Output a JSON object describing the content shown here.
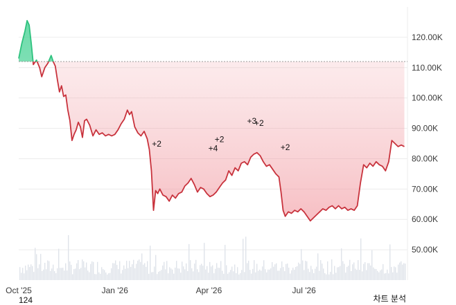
{
  "footer": {
    "low_label": "124",
    "analysis_label": "차트 분석"
  },
  "colors": {
    "up_line": "#2ec27e",
    "down_line": "#c8323c",
    "up_fill": "#3ccf8e",
    "down_fill": "#f4a0a6",
    "baseline": "#9a9a9a",
    "grid": "#ececec",
    "volume": "#dfe3ea"
  },
  "chart_data": {
    "type": "area",
    "y_tick_labels": [
      "120.00K",
      "110.00K",
      "100.00K",
      "90.00K",
      "80.00K",
      "70.00K",
      "60.00K",
      "50.00K"
    ],
    "y_ticks": [
      120000,
      110000,
      100000,
      90000,
      80000,
      70000,
      60000,
      50000
    ],
    "x_tick_labels": [
      "Oct '25",
      "Jan '26",
      "Apr '26",
      "Jul '26"
    ],
    "x_ticks": [
      "2025-10-01",
      "2026-01-01",
      "2026-04-01",
      "2026-07-01"
    ],
    "ylim": [
      40000,
      130000
    ],
    "xlim": [
      "2025-10-01",
      "2026-10-08"
    ],
    "baseline": 112000,
    "grid": true,
    "series": [
      {
        "points": [
          [
            "2025-10-01",
            113000
          ],
          [
            "2025-10-04",
            118000
          ],
          [
            "2025-10-07",
            122000
          ],
          [
            "2025-10-09",
            125500
          ],
          [
            "2025-10-11",
            124000
          ],
          [
            "2025-10-13",
            118000
          ],
          [
            "2025-10-15",
            111000
          ],
          [
            "2025-10-18",
            112500
          ],
          [
            "2025-10-21",
            110000
          ],
          [
            "2025-10-23",
            107000
          ],
          [
            "2025-10-26",
            110000
          ],
          [
            "2025-10-29",
            111500
          ],
          [
            "2025-11-01",
            114000
          ],
          [
            "2025-11-03",
            112000
          ],
          [
            "2025-11-05",
            110500
          ],
          [
            "2025-11-07",
            106000
          ],
          [
            "2025-11-09",
            102000
          ],
          [
            "2025-11-11",
            104000
          ],
          [
            "2025-11-13",
            100500
          ],
          [
            "2025-11-15",
            101000
          ],
          [
            "2025-11-17",
            96000
          ],
          [
            "2025-11-19",
            92500
          ],
          [
            "2025-11-21",
            86000
          ],
          [
            "2025-11-23",
            88000
          ],
          [
            "2025-11-25",
            89500
          ],
          [
            "2025-11-27",
            92000
          ],
          [
            "2025-11-29",
            90500
          ],
          [
            "2025-12-01",
            87000
          ],
          [
            "2025-12-03",
            92500
          ],
          [
            "2025-12-05",
            93000
          ],
          [
            "2025-12-08",
            91000
          ],
          [
            "2025-12-11",
            87500
          ],
          [
            "2025-12-14",
            89500
          ],
          [
            "2025-12-17",
            88000
          ],
          [
            "2025-12-20",
            88500
          ],
          [
            "2025-12-23",
            87500
          ],
          [
            "2025-12-26",
            88000
          ],
          [
            "2025-12-29",
            87500
          ],
          [
            "2026-01-01",
            88000
          ],
          [
            "2026-01-04",
            89500
          ],
          [
            "2026-01-07",
            91500
          ],
          [
            "2026-01-10",
            93000
          ],
          [
            "2026-01-13",
            96000
          ],
          [
            "2026-01-15",
            94500
          ],
          [
            "2026-01-17",
            95500
          ],
          [
            "2026-01-20",
            90500
          ],
          [
            "2026-01-23",
            88500
          ],
          [
            "2026-01-26",
            87500
          ],
          [
            "2026-01-29",
            89000
          ],
          [
            "2026-02-01",
            86500
          ],
          [
            "2026-02-03",
            83000
          ],
          [
            "2026-02-05",
            76000
          ],
          [
            "2026-02-07",
            63000
          ],
          [
            "2026-02-09",
            69500
          ],
          [
            "2026-02-11",
            68500
          ],
          [
            "2026-02-13",
            70000
          ],
          [
            "2026-02-16",
            68000
          ],
          [
            "2026-02-19",
            67500
          ],
          [
            "2026-02-22",
            66000
          ],
          [
            "2026-02-25",
            68000
          ],
          [
            "2026-02-28",
            67000
          ],
          [
            "2026-03-03",
            68500
          ],
          [
            "2026-03-06",
            69000
          ],
          [
            "2026-03-09",
            71000
          ],
          [
            "2026-03-12",
            72000
          ],
          [
            "2026-03-15",
            73500
          ],
          [
            "2026-03-18",
            71500
          ],
          [
            "2026-03-21",
            69000
          ],
          [
            "2026-03-24",
            70500
          ],
          [
            "2026-03-27",
            70000
          ],
          [
            "2026-03-30",
            68500
          ],
          [
            "2026-04-02",
            67500
          ],
          [
            "2026-04-05",
            68000
          ],
          [
            "2026-04-08",
            69000
          ],
          [
            "2026-04-11",
            70500
          ],
          [
            "2026-04-14",
            72000
          ],
          [
            "2026-04-17",
            73000
          ],
          [
            "2026-04-20",
            76000
          ],
          [
            "2026-04-23",
            74500
          ],
          [
            "2026-04-26",
            77000
          ],
          [
            "2026-04-29",
            76000
          ],
          [
            "2026-05-02",
            78500
          ],
          [
            "2026-05-05",
            79000
          ],
          [
            "2026-05-08",
            78000
          ],
          [
            "2026-05-11",
            80500
          ],
          [
            "2026-05-14",
            81500
          ],
          [
            "2026-05-17",
            82000
          ],
          [
            "2026-05-20",
            81000
          ],
          [
            "2026-05-23",
            79000
          ],
          [
            "2026-05-26",
            77500
          ],
          [
            "2026-05-29",
            78000
          ],
          [
            "2026-06-01",
            76500
          ],
          [
            "2026-06-04",
            75000
          ],
          [
            "2026-06-07",
            74000
          ],
          [
            "2026-06-09",
            69000
          ],
          [
            "2026-06-11",
            63000
          ],
          [
            "2026-06-13",
            61000
          ],
          [
            "2026-06-16",
            62500
          ],
          [
            "2026-06-19",
            62000
          ],
          [
            "2026-06-22",
            63000
          ],
          [
            "2026-06-25",
            62500
          ],
          [
            "2026-06-28",
            63500
          ],
          [
            "2026-07-01",
            62500
          ],
          [
            "2026-07-04",
            61000
          ],
          [
            "2026-07-07",
            59500
          ],
          [
            "2026-07-10",
            60500
          ],
          [
            "2026-07-13",
            61500
          ],
          [
            "2026-07-16",
            62500
          ],
          [
            "2026-07-19",
            63500
          ],
          [
            "2026-07-22",
            63000
          ],
          [
            "2026-07-25",
            64000
          ],
          [
            "2026-07-28",
            64500
          ],
          [
            "2026-07-31",
            63500
          ],
          [
            "2026-08-03",
            64500
          ],
          [
            "2026-08-06",
            63500
          ],
          [
            "2026-08-09",
            64000
          ],
          [
            "2026-08-12",
            63000
          ],
          [
            "2026-08-15",
            63500
          ],
          [
            "2026-08-18",
            63000
          ],
          [
            "2026-08-21",
            64500
          ],
          [
            "2026-08-24",
            72000
          ],
          [
            "2026-08-27",
            78000
          ],
          [
            "2026-08-30",
            77000
          ],
          [
            "2026-09-02",
            78500
          ],
          [
            "2026-09-05",
            77500
          ],
          [
            "2026-09-08",
            79000
          ],
          [
            "2026-09-11",
            78000
          ],
          [
            "2026-09-14",
            77500
          ],
          [
            "2026-09-17",
            76000
          ],
          [
            "2026-09-20",
            79000
          ],
          [
            "2026-09-23",
            86000
          ],
          [
            "2026-09-26",
            85000
          ],
          [
            "2026-09-29",
            84000
          ],
          [
            "2026-10-02",
            84500
          ],
          [
            "2026-10-05",
            84000
          ]
        ]
      }
    ],
    "annotations": [
      {
        "text": "+2",
        "x": "2026-02-10",
        "y": 84000
      },
      {
        "text": "+4",
        "x": "2026-04-05",
        "y": 82500
      },
      {
        "text": "+2",
        "x": "2026-04-11",
        "y": 85500
      },
      {
        "text": "+3",
        "x": "2026-05-12",
        "y": 91500
      },
      {
        "text": "+2",
        "x": "2026-05-19",
        "y": 90800
      },
      {
        "text": "+2",
        "x": "2026-06-13",
        "y": 82800
      }
    ]
  }
}
